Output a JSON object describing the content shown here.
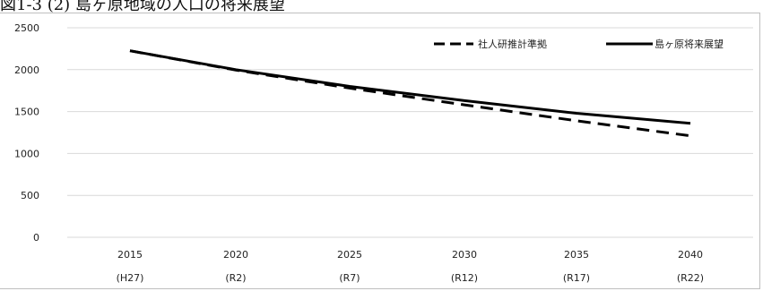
{
  "caption": "図1-3 (2) 島ヶ原地域の人口の将来展望",
  "chart_data": {
    "type": "line",
    "categories": [
      "2015",
      "2020",
      "2025",
      "2030",
      "2035",
      "2040"
    ],
    "category_sublabels": [
      "(H27)",
      "(R2)",
      "(R7)",
      "(R12)",
      "(R17)",
      "(R22)"
    ],
    "series": [
      {
        "name": "社人研推計準拠",
        "values": [
          2225,
          1995,
          1780,
          1580,
          1390,
          1210
        ],
        "style": "dashed",
        "color": "#000000"
      },
      {
        "name": "島ヶ原将来展望",
        "values": [
          2225,
          2000,
          1800,
          1630,
          1480,
          1360
        ],
        "style": "solid",
        "color": "#000000"
      }
    ],
    "yticks": [
      0,
      500,
      1000,
      1500,
      2000,
      2500
    ],
    "ylim": [
      0,
      2500
    ],
    "grid": true,
    "legend_position": "top-right"
  }
}
